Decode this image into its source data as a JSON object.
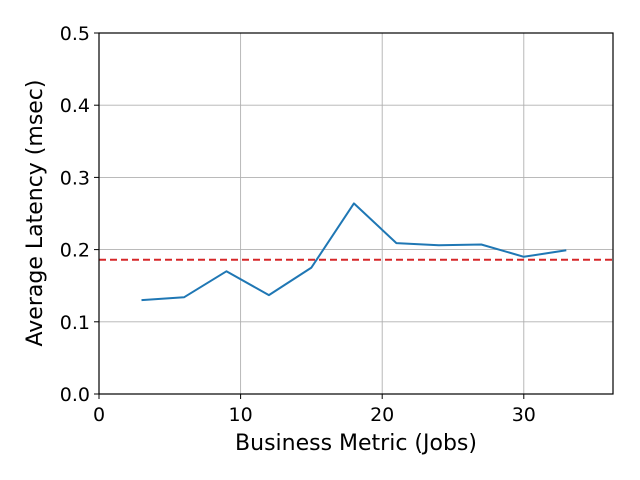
{
  "chart_data": {
    "type": "line",
    "title": "",
    "xlabel": "Business Metric (Jobs)",
    "ylabel": "Average Latency (msec)",
    "xlim": [
      0,
      36.3
    ],
    "ylim": [
      0,
      0.5
    ],
    "xticks": [
      0,
      10,
      20,
      30
    ],
    "xtick_labels": [
      "0",
      "10",
      "20",
      "30"
    ],
    "yticks": [
      0,
      0.1,
      0.2,
      0.3,
      0.4,
      0.5
    ],
    "ytick_labels": [
      "0.0",
      "0.1",
      "0.2",
      "0.3",
      "0.4",
      "0.5"
    ],
    "grid": true,
    "legend": "none",
    "series": [
      {
        "color": "#1f77b4",
        "x": [
          3,
          6,
          9,
          12,
          15,
          18,
          21,
          24,
          27,
          30,
          33
        ],
        "y": [
          0.13,
          0.134,
          0.17,
          0.137,
          0.175,
          0.264,
          0.209,
          0.206,
          0.207,
          0.19,
          0.199
        ]
      }
    ],
    "reference_line": {
      "y": 0.186,
      "color": "#d62728",
      "style": "dashed"
    }
  }
}
